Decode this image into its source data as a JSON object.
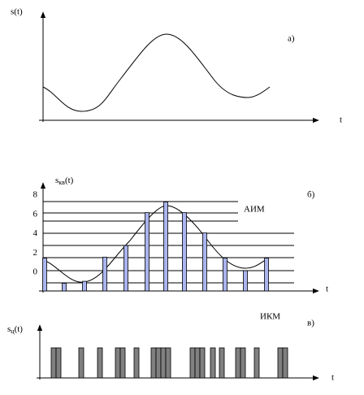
{
  "panel_a": {
    "y_label": "s(t)",
    "tag": "а)",
    "x_label": "t"
  },
  "panel_b": {
    "y_label": {
      "base": "s",
      "sub": "кв",
      "arg": "(t)"
    },
    "tag": "б)",
    "name": "АИМ",
    "x_label": "t",
    "ylim": [
      -1.5,
      8.5
    ],
    "yticks": [
      0,
      2,
      4,
      6,
      8
    ],
    "samples": [
      1.9,
      -0.7,
      -0.5,
      2,
      3.2,
      6.6,
      7.7,
      6.6,
      4.5,
      1.9,
      0.6,
      1.9
    ]
  },
  "panel_c": {
    "y_label": {
      "base": "s",
      "sub": "ц",
      "arg": "(t)"
    },
    "tag": "в)",
    "name": "ИКМ",
    "x_label": "t"
  }
}
